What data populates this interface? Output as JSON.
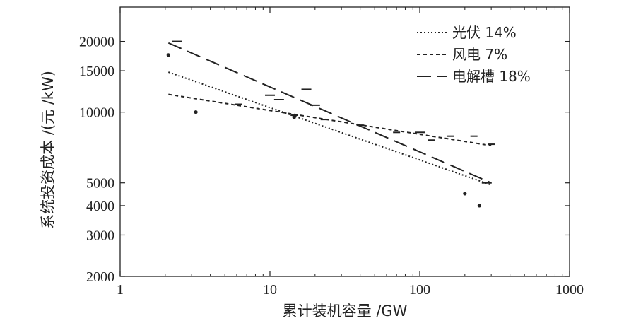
{
  "chart_data": {
    "type": "scatter",
    "xlabel": "累计装机容量 /GW",
    "ylabel": "系统投资成本 /(元 /kW)",
    "xscale": "log",
    "yscale": "log",
    "xlim": [
      1,
      1000
    ],
    "ylim": [
      2000,
      28000
    ],
    "xticks": [
      1,
      10,
      100,
      1000
    ],
    "xtick_labels": [
      "1",
      "10",
      "100",
      "1000"
    ],
    "yticks": [
      2000,
      3000,
      4000,
      5000,
      10000,
      15000,
      20000
    ],
    "ytick_labels": [
      "2000",
      "3000",
      "4000",
      "5000",
      "10000",
      "15000",
      "20000"
    ],
    "grid": false,
    "legend_position": "top-right",
    "series": [
      {
        "name": "光伏 14%",
        "style": "dotted",
        "points": [
          [
            2.1,
            17500
          ],
          [
            3.2,
            10000
          ],
          [
            14.5,
            9500
          ],
          [
            200,
            4500
          ],
          [
            250,
            4000
          ]
        ],
        "fit": [
          [
            2.1,
            14800
          ],
          [
            300,
            4900
          ]
        ]
      },
      {
        "name": "风电 7%",
        "style": "dashed",
        "points": [
          [
            6.2,
            10800
          ],
          [
            14.5,
            9700
          ],
          [
            23,
            9300
          ],
          [
            40,
            8800
          ],
          [
            70,
            8200
          ],
          [
            120,
            7600
          ],
          [
            160,
            7900
          ],
          [
            230,
            7900
          ],
          [
            300,
            7300
          ]
        ],
        "fit": [
          [
            2.1,
            11900
          ],
          [
            300,
            7200
          ]
        ]
      },
      {
        "name": "电解槽 18%",
        "style": "longdash",
        "points": [
          [
            2.4,
            20000
          ],
          [
            10,
            11800
          ],
          [
            11.5,
            11300
          ],
          [
            17.5,
            12500
          ],
          [
            20,
            10700
          ],
          [
            100,
            8200
          ],
          [
            280,
            5000
          ]
        ],
        "fit": [
          [
            2.1,
            19700
          ],
          [
            300,
            5000
          ]
        ]
      }
    ]
  }
}
